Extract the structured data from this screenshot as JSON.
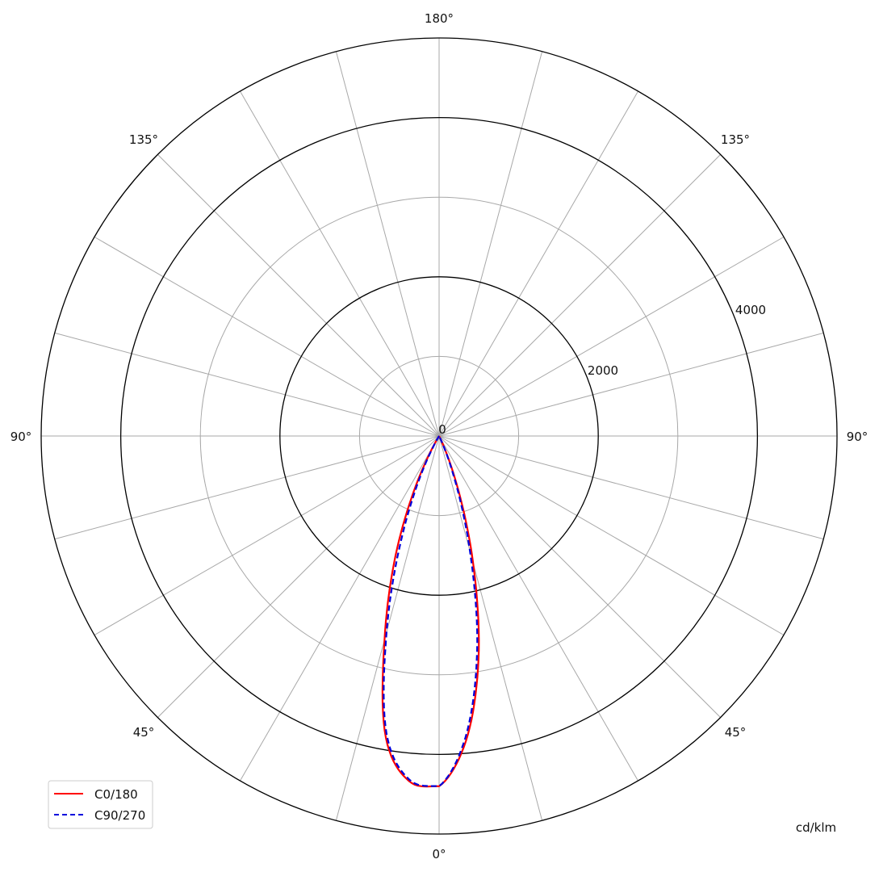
{
  "chart_data": {
    "type": "polar-line",
    "title": "",
    "unit_label": "cd/klm",
    "radial_range": [
      0,
      5000
    ],
    "radial_gridlines": [
      1000,
      2000,
      3000,
      4000,
      5000
    ],
    "radial_tick_labels": [
      "0",
      "2000",
      "4000"
    ],
    "radial_tick_values": [
      0,
      2000,
      4000
    ],
    "angle_step_deg": 15,
    "angle_labels": [
      {
        "text": "180°",
        "position": "top"
      },
      {
        "text": "135°",
        "position": "upper-left"
      },
      {
        "text": "135°",
        "position": "upper-right"
      },
      {
        "text": "90°",
        "position": "left"
      },
      {
        "text": "90°",
        "position": "right"
      },
      {
        "text": "45°",
        "position": "lower-left"
      },
      {
        "text": "45°",
        "position": "lower-right"
      },
      {
        "text": "0°",
        "position": "bottom"
      }
    ],
    "grid": true,
    "legend_position": "bottom-left",
    "gamma_deg": [
      0,
      5,
      10,
      15,
      20,
      25,
      30,
      35
    ],
    "series": [
      {
        "name": "C0/180",
        "color": "#ff0000",
        "style": "solid",
        "left_values": [
          4400,
          4350,
          3850,
          2650,
          1600,
          700,
          100,
          0
        ],
        "right_values": [
          4400,
          3850,
          2850,
          1650,
          650,
          80,
          0,
          0
        ]
      },
      {
        "name": "C90/270",
        "color": "#0000dd",
        "style": "dashed",
        "left_values": [
          4400,
          4330,
          3800,
          2550,
          1400,
          550,
          60,
          0
        ],
        "right_values": [
          4400,
          3800,
          2750,
          1500,
          550,
          60,
          0,
          0
        ]
      }
    ]
  }
}
